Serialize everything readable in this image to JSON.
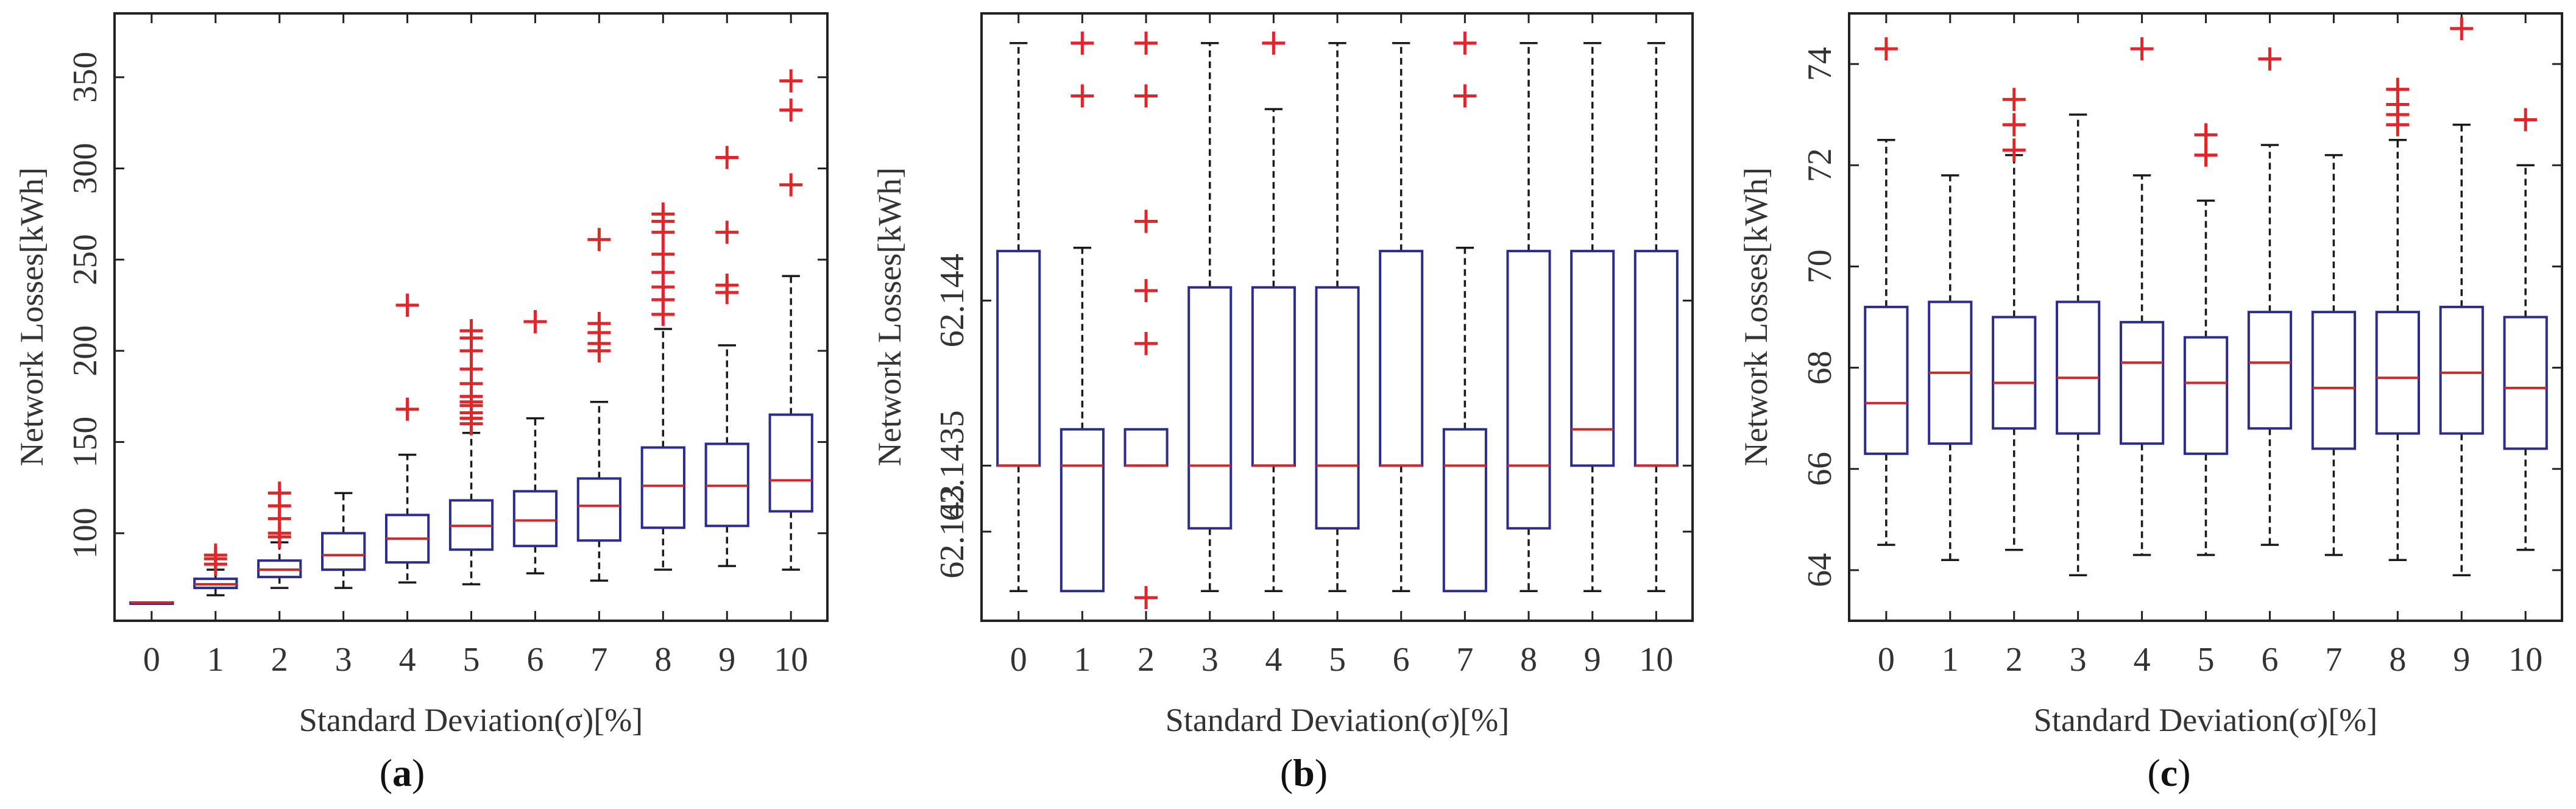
{
  "chart_data": [
    {
      "type": "box",
      "panel": "a",
      "caption_prefix": "(",
      "caption_letter": "a",
      "caption_suffix": ")",
      "xlabel": "Standard Deviation(σ)[%]",
      "ylabel": "Network Losses[kWh]",
      "ylim": [
        52,
        385
      ],
      "yticks": [
        100,
        150,
        200,
        250,
        300,
        350
      ],
      "ytick_labels": [
        "100",
        "150",
        "200",
        "250",
        "300",
        "350"
      ],
      "categories": [
        "0",
        "1",
        "2",
        "3",
        "4",
        "5",
        "6",
        "7",
        "8",
        "9",
        "10"
      ],
      "boxes": [
        {
          "whisker_low": 62,
          "q1": 62,
          "median": 62,
          "q3": 62,
          "whisker_high": 62,
          "outliers": []
        },
        {
          "whisker_low": 66,
          "q1": 70,
          "median": 72,
          "q3": 75,
          "whisker_high": 80,
          "outliers": [
            83,
            86,
            88
          ]
        },
        {
          "whisker_low": 70,
          "q1": 76,
          "median": 80,
          "q3": 85,
          "whisker_high": 95,
          "outliers": [
            98,
            100,
            108,
            115,
            122
          ]
        },
        {
          "whisker_low": 70,
          "q1": 80,
          "median": 88,
          "q3": 100,
          "whisker_high": 122,
          "outliers": []
        },
        {
          "whisker_low": 73,
          "q1": 84,
          "median": 97,
          "q3": 110,
          "whisker_high": 143,
          "outliers": [
            168,
            225
          ]
        },
        {
          "whisker_low": 72,
          "q1": 91,
          "median": 104,
          "q3": 118,
          "whisker_high": 155,
          "outliers": [
            160,
            163,
            166,
            170,
            172,
            175,
            182,
            190,
            200,
            207,
            211
          ]
        },
        {
          "whisker_low": 78,
          "q1": 93,
          "median": 107,
          "q3": 123,
          "whisker_high": 163,
          "outliers": [
            216
          ]
        },
        {
          "whisker_low": 74,
          "q1": 96,
          "median": 115,
          "q3": 130,
          "whisker_high": 172,
          "outliers": [
            200,
            204,
            210,
            215,
            261
          ]
        },
        {
          "whisker_low": 80,
          "q1": 103,
          "median": 126,
          "q3": 147,
          "whisker_high": 212,
          "outliers": [
            220,
            228,
            235,
            243,
            253,
            265,
            271,
            275
          ]
        },
        {
          "whisker_low": 82,
          "q1": 104,
          "median": 126,
          "q3": 149,
          "whisker_high": 203,
          "outliers": [
            232,
            236,
            265,
            306
          ]
        },
        {
          "whisker_low": 80,
          "q1": 112,
          "median": 129,
          "q3": 165,
          "whisker_high": 241,
          "outliers": [
            291,
            332,
            348
          ]
        }
      ]
    },
    {
      "type": "box",
      "panel": "b",
      "caption_prefix": "(",
      "caption_letter": "b",
      "caption_suffix": ")",
      "xlabel": "Standard Deviation(σ)[%]",
      "ylabel": "Network Losses[kWh]",
      "ylim": [
        62.14303,
        62.14487
      ],
      "yticks": [
        62.1433,
        62.1435,
        62.144
      ],
      "ytick_labels": [
        "62.143",
        "62.1435",
        "62.144"
      ],
      "categories": [
        "0",
        "1",
        "2",
        "3",
        "4",
        "5",
        "6",
        "7",
        "8",
        "9",
        "10"
      ],
      "boxes": [
        {
          "whisker_low": 62.14312,
          "q1": 62.1435,
          "median": 62.1435,
          "q3": 62.14415,
          "whisker_high": 62.14478,
          "outliers": []
        },
        {
          "whisker_low": 62.14312,
          "q1": 62.14312,
          "median": 62.1435,
          "q3": 62.14361,
          "whisker_high": 62.14416,
          "outliers": [
            62.14462,
            62.14478
          ]
        },
        {
          "whisker_low": 62.1435,
          "q1": 62.1435,
          "median": 62.1435,
          "q3": 62.14361,
          "whisker_high": 62.14361,
          "outliers": [
            62.1431,
            62.14387,
            62.14403,
            62.14424,
            62.14462,
            62.14478
          ]
        },
        {
          "whisker_low": 62.14312,
          "q1": 62.14331,
          "median": 62.1435,
          "q3": 62.14404,
          "whisker_high": 62.14478,
          "outliers": []
        },
        {
          "whisker_low": 62.14312,
          "q1": 62.1435,
          "median": 62.1435,
          "q3": 62.14404,
          "whisker_high": 62.14458,
          "outliers": [
            62.14478
          ]
        },
        {
          "whisker_low": 62.14312,
          "q1": 62.14331,
          "median": 62.1435,
          "q3": 62.14404,
          "whisker_high": 62.14478,
          "outliers": []
        },
        {
          "whisker_low": 62.14312,
          "q1": 62.1435,
          "median": 62.1435,
          "q3": 62.14415,
          "whisker_high": 62.14478,
          "outliers": []
        },
        {
          "whisker_low": 62.14312,
          "q1": 62.14312,
          "median": 62.1435,
          "q3": 62.14361,
          "whisker_high": 62.14416,
          "outliers": [
            62.14462,
            62.14478
          ]
        },
        {
          "whisker_low": 62.14312,
          "q1": 62.14331,
          "median": 62.1435,
          "q3": 62.14415,
          "whisker_high": 62.14478,
          "outliers": []
        },
        {
          "whisker_low": 62.14312,
          "q1": 62.1435,
          "median": 62.14361,
          "q3": 62.14415,
          "whisker_high": 62.14478,
          "outliers": []
        },
        {
          "whisker_low": 62.14312,
          "q1": 62.1435,
          "median": 62.1435,
          "q3": 62.14415,
          "whisker_high": 62.14478,
          "outliers": []
        }
      ]
    },
    {
      "type": "box",
      "panel": "c",
      "caption_prefix": "(",
      "caption_letter": "c",
      "caption_suffix": ")",
      "xlabel": "Standard Deviation(σ)[%]",
      "ylabel": "Network Losses[kWh]",
      "ylim": [
        63.0,
        75.0
      ],
      "yticks": [
        64,
        66,
        68,
        70,
        72,
        74
      ],
      "ytick_labels": [
        "64",
        "66",
        "68",
        "70",
        "72",
        "74"
      ],
      "categories": [
        "0",
        "1",
        "2",
        "3",
        "4",
        "5",
        "6",
        "7",
        "8",
        "9",
        "10"
      ],
      "boxes": [
        {
          "whisker_low": 64.5,
          "q1": 66.3,
          "median": 67.3,
          "q3": 69.2,
          "whisker_high": 72.5,
          "outliers": [
            74.3
          ]
        },
        {
          "whisker_low": 64.2,
          "q1": 66.5,
          "median": 67.9,
          "q3": 69.3,
          "whisker_high": 71.8,
          "outliers": []
        },
        {
          "whisker_low": 64.4,
          "q1": 66.8,
          "median": 67.7,
          "q3": 69.0,
          "whisker_high": 72.2,
          "outliers": [
            72.3,
            72.8,
            73.3
          ]
        },
        {
          "whisker_low": 63.9,
          "q1": 66.7,
          "median": 67.8,
          "q3": 69.3,
          "whisker_high": 73.0,
          "outliers": []
        },
        {
          "whisker_low": 64.3,
          "q1": 66.5,
          "median": 68.1,
          "q3": 68.9,
          "whisker_high": 71.8,
          "outliers": [
            74.3
          ]
        },
        {
          "whisker_low": 64.3,
          "q1": 66.3,
          "median": 67.7,
          "q3": 68.6,
          "whisker_high": 71.3,
          "outliers": [
            72.2,
            72.6
          ]
        },
        {
          "whisker_low": 64.5,
          "q1": 66.8,
          "median": 68.1,
          "q3": 69.1,
          "whisker_high": 72.4,
          "outliers": [
            74.1
          ]
        },
        {
          "whisker_low": 64.3,
          "q1": 66.4,
          "median": 67.6,
          "q3": 69.1,
          "whisker_high": 72.2,
          "outliers": []
        },
        {
          "whisker_low": 64.2,
          "q1": 66.7,
          "median": 67.8,
          "q3": 69.1,
          "whisker_high": 72.5,
          "outliers": [
            72.8,
            73.0,
            73.2,
            73.5
          ]
        },
        {
          "whisker_low": 63.9,
          "q1": 66.7,
          "median": 67.9,
          "q3": 69.2,
          "whisker_high": 72.8,
          "outliers": [
            74.7
          ]
        },
        {
          "whisker_low": 64.4,
          "q1": 66.4,
          "median": 67.6,
          "q3": 69.0,
          "whisker_high": 72.0,
          "outliers": [
            72.9
          ]
        }
      ]
    }
  ],
  "colors": {
    "box": "#2b2d8c",
    "median": "#cc2a2a",
    "outlier": "#e0262a",
    "whisker": "#1a1a1a",
    "axis": "#222222",
    "text": "#333333"
  }
}
